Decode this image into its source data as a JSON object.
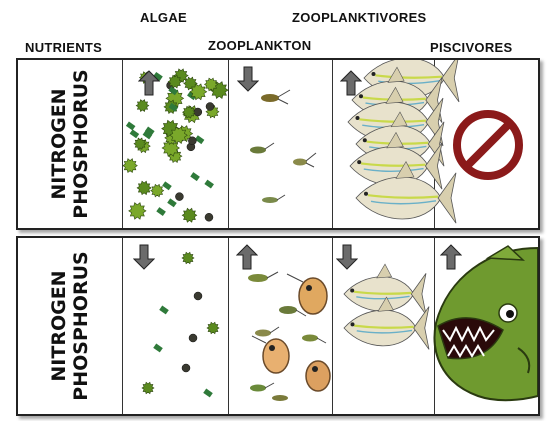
{
  "headers": {
    "algae": "ALGAE",
    "zooplanktivores": "ZOOPLANKTIVORES",
    "nutrients": "NUTRIENTS",
    "zooplankton": "ZOOPLANKTON",
    "piscivores": "PISCIVORES"
  },
  "top_panel": {
    "side_label_line1": "NITROGEN",
    "side_label_line2": "PHOSPHORUS",
    "arrows": {
      "algae": "up",
      "zooplankton": "down",
      "zooplanktivores": "up"
    },
    "piscivores": "no-symbol-icon"
  },
  "bottom_panel": {
    "side_label_line1": "NITROGEN",
    "side_label_line2": "PHOSPHORUS",
    "arrows": {
      "algae": "down",
      "zooplankton": "up",
      "zooplanktivores": "down",
      "piscivores": "up"
    },
    "piscivores": "bass-fish-icon"
  },
  "colors": {
    "arrow": "#6b6b6b",
    "algae": "#5a8a1e",
    "no_symbol": "#8b1a1a",
    "bass": "#6f9a2f",
    "minnow_stripe": "#c9d94a"
  }
}
